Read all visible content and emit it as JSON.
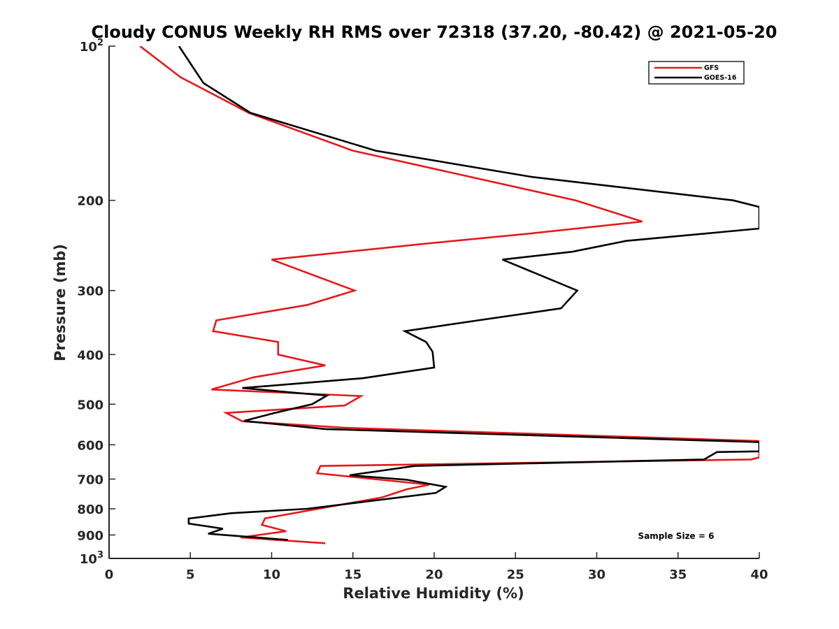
{
  "chart_data": {
    "type": "line",
    "title": "Cloudy CONUS Weekly RH RMS over 72318 (37.20, -80.42) @ 2021-05-20",
    "xlabel": "Relative Humidity (%)",
    "ylabel": "Pressure (mb)",
    "xlim": [
      0,
      40
    ],
    "ylim": [
      100,
      1000
    ],
    "yscale": "log",
    "y_reversed": true,
    "xticks": [
      0,
      5,
      10,
      15,
      20,
      25,
      30,
      35,
      40
    ],
    "yticks": [
      {
        "value": 100,
        "base": "10",
        "exp": "2"
      },
      {
        "value": 200,
        "label": "200"
      },
      {
        "value": 300,
        "label": "300"
      },
      {
        "value": 400,
        "label": "400"
      },
      {
        "value": 500,
        "label": "500"
      },
      {
        "value": 600,
        "label": "600"
      },
      {
        "value": 700,
        "label": "700"
      },
      {
        "value": 800,
        "label": "800"
      },
      {
        "value": 900,
        "label": "900"
      },
      {
        "value": 1000,
        "base": "10",
        "exp": "3"
      }
    ],
    "legend_position": "top-right",
    "annotation": "Sample Size = 6",
    "series": [
      {
        "name": "GFS",
        "color": "#e41a1c",
        "points": [
          [
            1.9,
            100
          ],
          [
            4.4,
            115
          ],
          [
            8.6,
            135
          ],
          [
            15,
            160
          ],
          [
            28.7,
            200
          ],
          [
            32.8,
            220
          ],
          [
            26,
            232
          ],
          [
            19.5,
            243
          ],
          [
            10,
            261
          ],
          [
            15.1,
            300
          ],
          [
            12.2,
            320
          ],
          [
            6.6,
            343
          ],
          [
            6.4,
            360
          ],
          [
            10.4,
            378
          ],
          [
            10.4,
            400
          ],
          [
            13.3,
            420
          ],
          [
            8.9,
            443
          ],
          [
            6.3,
            468
          ],
          [
            15.5,
            482
          ],
          [
            14.5,
            503
          ],
          [
            7.2,
            520
          ],
          [
            8.2,
            540
          ],
          [
            14.5,
            556
          ],
          [
            40,
            590
          ],
          [
            40,
            635
          ],
          [
            39.5,
            641
          ],
          [
            13,
            660
          ],
          [
            12.8,
            682
          ],
          [
            19.7,
            718
          ],
          [
            18.3,
            733
          ],
          [
            16.8,
            760
          ],
          [
            9.6,
            835
          ],
          [
            9.4,
            860
          ],
          [
            10.9,
            885
          ],
          [
            8.1,
            910
          ],
          [
            13.3,
            934
          ]
        ]
      },
      {
        "name": "GOES-16",
        "color": "#000000",
        "points": [
          [
            4.3,
            100
          ],
          [
            5.8,
            118
          ],
          [
            8.7,
            135
          ],
          [
            16.4,
            160
          ],
          [
            26,
            180
          ],
          [
            38.4,
            200
          ],
          [
            40,
            206
          ],
          [
            40,
            227
          ],
          [
            31.8,
            240
          ],
          [
            28.5,
            252
          ],
          [
            24.2,
            261
          ],
          [
            28.8,
            300
          ],
          [
            27.8,
            325
          ],
          [
            22.7,
            343
          ],
          [
            18.2,
            360
          ],
          [
            19.5,
            378
          ],
          [
            19.9,
            395
          ],
          [
            20,
            424
          ],
          [
            15.6,
            445
          ],
          [
            8.2,
            465
          ],
          [
            13.4,
            481
          ],
          [
            12.5,
            500
          ],
          [
            10.2,
            520
          ],
          [
            8.3,
            539
          ],
          [
            13.3,
            559
          ],
          [
            40,
            593
          ],
          [
            40,
            618
          ],
          [
            37.4,
            620
          ],
          [
            36.6,
            641
          ],
          [
            18.8,
            660
          ],
          [
            14.8,
            688
          ],
          [
            18.3,
            702
          ],
          [
            20.7,
            725
          ],
          [
            20.1,
            745
          ],
          [
            12.2,
            800
          ],
          [
            7.5,
            816
          ],
          [
            4.9,
            836
          ],
          [
            4.9,
            855
          ],
          [
            7,
            875
          ],
          [
            6.1,
            895
          ],
          [
            11,
            920
          ]
        ]
      }
    ]
  }
}
